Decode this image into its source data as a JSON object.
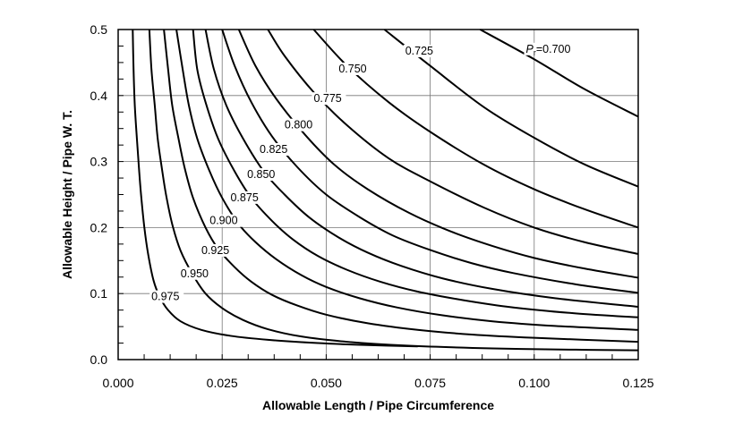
{
  "chart_data": {
    "type": "line",
    "xlabel": "Allowable Length / Pipe Circumference",
    "ylabel": "Allowable Height / Pipe W. T.",
    "xlim": [
      0,
      0.125
    ],
    "ylim": [
      0,
      0.5
    ],
    "x_ticks": [
      "0.000",
      "0.025",
      "0.050",
      "0.075",
      "0.100",
      "0.125"
    ],
    "y_ticks": [
      "0.0",
      "0.1",
      "0.2",
      "0.3",
      "0.4",
      "0.5"
    ],
    "grid": true,
    "series": [
      {
        "name": "P_r=0.700",
        "label_prefix": "P",
        "label_sub": "r",
        "label_suffix": "=0.700",
        "label_at": [
          0.098,
          0.465
        ],
        "points": [
          [
            0.087,
            0.5
          ],
          [
            0.1,
            0.455
          ],
          [
            0.112,
            0.41
          ],
          [
            0.125,
            0.368
          ]
        ]
      },
      {
        "name": "0.725",
        "label": "0.725",
        "label_at": [
          0.069,
          0.462
        ],
        "points": [
          [
            0.064,
            0.5
          ],
          [
            0.075,
            0.445
          ],
          [
            0.088,
            0.382
          ],
          [
            0.1,
            0.336
          ],
          [
            0.112,
            0.296
          ],
          [
            0.125,
            0.262
          ]
        ]
      },
      {
        "name": "0.750",
        "label": "0.750",
        "label_at": [
          0.053,
          0.435
        ],
        "points": [
          [
            0.047,
            0.5
          ],
          [
            0.055,
            0.445
          ],
          [
            0.065,
            0.39
          ],
          [
            0.075,
            0.345
          ],
          [
            0.088,
            0.295
          ],
          [
            0.1,
            0.258
          ],
          [
            0.112,
            0.228
          ],
          [
            0.125,
            0.2
          ]
        ]
      },
      {
        "name": "0.775",
        "label": "0.775",
        "label_at": [
          0.047,
          0.39
        ],
        "points": [
          [
            0.036,
            0.5
          ],
          [
            0.04,
            0.46
          ],
          [
            0.047,
            0.405
          ],
          [
            0.055,
            0.355
          ],
          [
            0.065,
            0.305
          ],
          [
            0.075,
            0.27
          ],
          [
            0.088,
            0.23
          ],
          [
            0.1,
            0.2
          ],
          [
            0.112,
            0.178
          ],
          [
            0.125,
            0.16
          ]
        ]
      },
      {
        "name": "0.800",
        "label": "0.800",
        "label_at": [
          0.04,
          0.35
        ],
        "points": [
          [
            0.029,
            0.5
          ],
          [
            0.033,
            0.445
          ],
          [
            0.038,
            0.395
          ],
          [
            0.045,
            0.34
          ],
          [
            0.052,
            0.295
          ],
          [
            0.06,
            0.258
          ],
          [
            0.07,
            0.222
          ],
          [
            0.08,
            0.194
          ],
          [
            0.09,
            0.172
          ],
          [
            0.1,
            0.154
          ],
          [
            0.112,
            0.138
          ],
          [
            0.125,
            0.124
          ]
        ]
      },
      {
        "name": "0.825",
        "label": "0.825",
        "label_at": [
          0.034,
          0.313
        ],
        "points": [
          [
            0.025,
            0.5
          ],
          [
            0.028,
            0.445
          ],
          [
            0.032,
            0.39
          ],
          [
            0.037,
            0.338
          ],
          [
            0.043,
            0.292
          ],
          [
            0.05,
            0.25
          ],
          [
            0.058,
            0.216
          ],
          [
            0.066,
            0.188
          ],
          [
            0.075,
            0.166
          ],
          [
            0.085,
            0.146
          ],
          [
            0.095,
            0.131
          ],
          [
            0.11,
            0.114
          ],
          [
            0.125,
            0.101
          ]
        ]
      },
      {
        "name": "0.850",
        "label": "0.850",
        "label_at": [
          0.031,
          0.275
        ],
        "points": [
          [
            0.021,
            0.5
          ],
          [
            0.023,
            0.44
          ],
          [
            0.026,
            0.385
          ],
          [
            0.03,
            0.335
          ],
          [
            0.035,
            0.285
          ],
          [
            0.04,
            0.25
          ],
          [
            0.046,
            0.215
          ],
          [
            0.053,
            0.185
          ],
          [
            0.06,
            0.162
          ],
          [
            0.068,
            0.142
          ],
          [
            0.078,
            0.123
          ],
          [
            0.09,
            0.107
          ],
          [
            0.105,
            0.093
          ],
          [
            0.125,
            0.08
          ]
        ]
      },
      {
        "name": "0.875",
        "label": "0.875",
        "label_at": [
          0.027,
          0.24
        ],
        "points": [
          [
            0.018,
            0.5
          ],
          [
            0.019,
            0.44
          ],
          [
            0.021,
            0.39
          ],
          [
            0.024,
            0.335
          ],
          [
            0.028,
            0.285
          ],
          [
            0.032,
            0.245
          ],
          [
            0.037,
            0.21
          ],
          [
            0.042,
            0.182
          ],
          [
            0.048,
            0.157
          ],
          [
            0.055,
            0.136
          ],
          [
            0.063,
            0.118
          ],
          [
            0.072,
            0.103
          ],
          [
            0.083,
            0.09
          ],
          [
            0.095,
            0.079
          ],
          [
            0.11,
            0.07
          ],
          [
            0.125,
            0.064
          ]
        ]
      },
      {
        "name": "0.900",
        "label": "0.900",
        "label_at": [
          0.022,
          0.205
        ],
        "points": [
          [
            0.014,
            0.5
          ],
          [
            0.0155,
            0.44
          ],
          [
            0.017,
            0.385
          ],
          [
            0.019,
            0.335
          ],
          [
            0.022,
            0.285
          ],
          [
            0.025,
            0.245
          ],
          [
            0.029,
            0.205
          ],
          [
            0.033,
            0.178
          ],
          [
            0.038,
            0.152
          ],
          [
            0.044,
            0.128
          ],
          [
            0.05,
            0.11
          ],
          [
            0.058,
            0.093
          ],
          [
            0.067,
            0.079
          ],
          [
            0.078,
            0.067
          ],
          [
            0.09,
            0.058
          ],
          [
            0.105,
            0.051
          ],
          [
            0.125,
            0.045
          ]
        ]
      },
      {
        "name": "0.925",
        "label": "0.925",
        "label_at": [
          0.02,
          0.16
        ],
        "points": [
          [
            0.011,
            0.5
          ],
          [
            0.012,
            0.44
          ],
          [
            0.013,
            0.385
          ],
          [
            0.0145,
            0.335
          ],
          [
            0.016,
            0.29
          ],
          [
            0.018,
            0.245
          ],
          [
            0.021,
            0.2
          ],
          [
            0.024,
            0.168
          ],
          [
            0.028,
            0.14
          ],
          [
            0.032,
            0.118
          ],
          [
            0.037,
            0.098
          ],
          [
            0.043,
            0.082
          ],
          [
            0.05,
            0.068
          ],
          [
            0.06,
            0.055
          ],
          [
            0.072,
            0.045
          ],
          [
            0.085,
            0.038
          ],
          [
            0.1,
            0.033
          ],
          [
            0.125,
            0.027
          ]
        ]
      },
      {
        "name": "0.950",
        "label": "0.950",
        "label_at": [
          0.015,
          0.125
        ],
        "points": [
          [
            0.0075,
            0.5
          ],
          [
            0.008,
            0.44
          ],
          [
            0.0088,
            0.385
          ],
          [
            0.0095,
            0.335
          ],
          [
            0.0105,
            0.29
          ],
          [
            0.0115,
            0.25
          ],
          [
            0.013,
            0.205
          ],
          [
            0.015,
            0.165
          ],
          [
            0.018,
            0.128
          ],
          [
            0.021,
            0.1
          ],
          [
            0.025,
            0.078
          ],
          [
            0.03,
            0.06
          ],
          [
            0.036,
            0.046
          ],
          [
            0.044,
            0.035
          ],
          [
            0.055,
            0.027
          ],
          [
            0.07,
            0.021
          ],
          [
            0.09,
            0.017
          ],
          [
            0.11,
            0.015
          ],
          [
            0.125,
            0.014
          ]
        ]
      },
      {
        "name": "0.975",
        "label": "0.975",
        "label_at": [
          0.008,
          0.09
        ],
        "points": [
          [
            0.0035,
            0.5
          ],
          [
            0.0037,
            0.44
          ],
          [
            0.004,
            0.385
          ],
          [
            0.0045,
            0.335
          ],
          [
            0.005,
            0.29
          ],
          [
            0.0055,
            0.25
          ],
          [
            0.0063,
            0.2
          ],
          [
            0.0072,
            0.16
          ],
          [
            0.0085,
            0.12
          ],
          [
            0.01,
            0.095
          ],
          [
            0.012,
            0.075
          ],
          [
            0.015,
            0.058
          ],
          [
            0.02,
            0.045
          ],
          [
            0.027,
            0.036
          ],
          [
            0.036,
            0.03
          ],
          [
            0.048,
            0.025
          ],
          [
            0.06,
            0.022
          ],
          [
            0.072,
            0.02
          ]
        ]
      }
    ]
  }
}
